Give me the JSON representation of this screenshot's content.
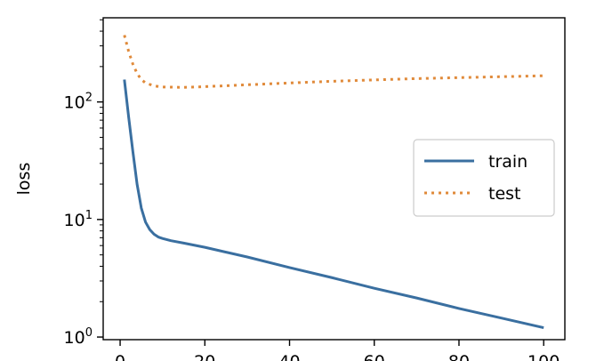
{
  "chart_data": {
    "type": "line",
    "title": "",
    "xlabel": "",
    "ylabel": "loss",
    "xscale": "linear",
    "yscale": "log",
    "xlim": [
      -4,
      105
    ],
    "ylim": [
      0.95,
      520
    ],
    "x_ticks": [
      0,
      20,
      40,
      60,
      80,
      100
    ],
    "x_tick_labels": [
      "0",
      "20",
      "40",
      "60",
      "80",
      "100"
    ],
    "y_ticks": [
      1,
      10,
      100
    ],
    "y_tick_labels": [
      {
        "base": "10",
        "exp": "0"
      },
      {
        "base": "10",
        "exp": "1"
      },
      {
        "base": "10",
        "exp": "2"
      }
    ],
    "grid": false,
    "legend_position": "center-right",
    "series": [
      {
        "name": "train",
        "style": "solid",
        "color": "#3a6fa0",
        "x": [
          1,
          2,
          3,
          4,
          5,
          6,
          7,
          8,
          9,
          10,
          12,
          15,
          20,
          30,
          40,
          50,
          60,
          70,
          80,
          90,
          100
        ],
        "y": [
          155,
          75,
          38,
          20,
          12.5,
          9.5,
          8.2,
          7.5,
          7.1,
          6.9,
          6.6,
          6.3,
          5.8,
          4.8,
          3.9,
          3.2,
          2.6,
          2.15,
          1.75,
          1.45,
          1.2
        ]
      },
      {
        "name": "test",
        "style": "dotted",
        "color": "#e08a3a",
        "x": [
          1,
          2,
          3,
          4,
          5,
          6,
          8,
          10,
          15,
          20,
          30,
          40,
          50,
          60,
          70,
          80,
          90,
          100
        ],
        "y": [
          370,
          270,
          210,
          175,
          155,
          145,
          137,
          134,
          133,
          135,
          140,
          145,
          150,
          154,
          158,
          161,
          164,
          167
        ]
      }
    ]
  }
}
